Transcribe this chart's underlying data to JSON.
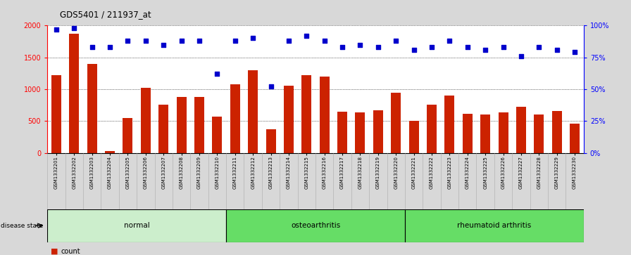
{
  "title": "GDS5401 / 211937_at",
  "samples": [
    "GSM1332201",
    "GSM1332202",
    "GSM1332203",
    "GSM1332204",
    "GSM1332205",
    "GSM1332206",
    "GSM1332207",
    "GSM1332208",
    "GSM1332209",
    "GSM1332210",
    "GSM1332211",
    "GSM1332212",
    "GSM1332213",
    "GSM1332214",
    "GSM1332215",
    "GSM1332216",
    "GSM1332217",
    "GSM1332218",
    "GSM1332219",
    "GSM1332220",
    "GSM1332221",
    "GSM1332222",
    "GSM1332223",
    "GSM1332224",
    "GSM1332225",
    "GSM1332226",
    "GSM1332227",
    "GSM1332228",
    "GSM1332229",
    "GSM1332230"
  ],
  "counts": [
    1220,
    1870,
    1400,
    30,
    550,
    1020,
    760,
    880,
    880,
    570,
    1080,
    1300,
    370,
    1060,
    1220,
    1200,
    650,
    640,
    670,
    950,
    500,
    760,
    900,
    620,
    600,
    640,
    730,
    600,
    660,
    460
  ],
  "percentile_ranks": [
    97,
    98,
    83,
    83,
    88,
    88,
    85,
    88,
    88,
    62,
    88,
    90,
    52,
    88,
    92,
    88,
    83,
    85,
    83,
    88,
    81,
    83,
    88,
    83,
    81,
    83,
    76,
    83,
    81,
    79
  ],
  "bar_color": "#cc2200",
  "dot_color": "#0000cc",
  "groups": [
    {
      "label": "normal",
      "start": 0,
      "end": 10,
      "color": "#cceecc"
    },
    {
      "label": "osteoarthritis",
      "start": 10,
      "end": 20,
      "color": "#66dd66"
    },
    {
      "label": "rheumatoid arthritis",
      "start": 20,
      "end": 30,
      "color": "#66dd66"
    }
  ],
  "ylim_left": [
    0,
    2000
  ],
  "ylim_right": [
    0,
    100
  ],
  "yticks_left": [
    0,
    500,
    1000,
    1500,
    2000
  ],
  "yticks_right": [
    0,
    25,
    50,
    75,
    100
  ],
  "fig_bg_color": "#d8d8d8",
  "plot_bg_color": "#ffffff",
  "xtick_bg_color": "#c8c8c8"
}
